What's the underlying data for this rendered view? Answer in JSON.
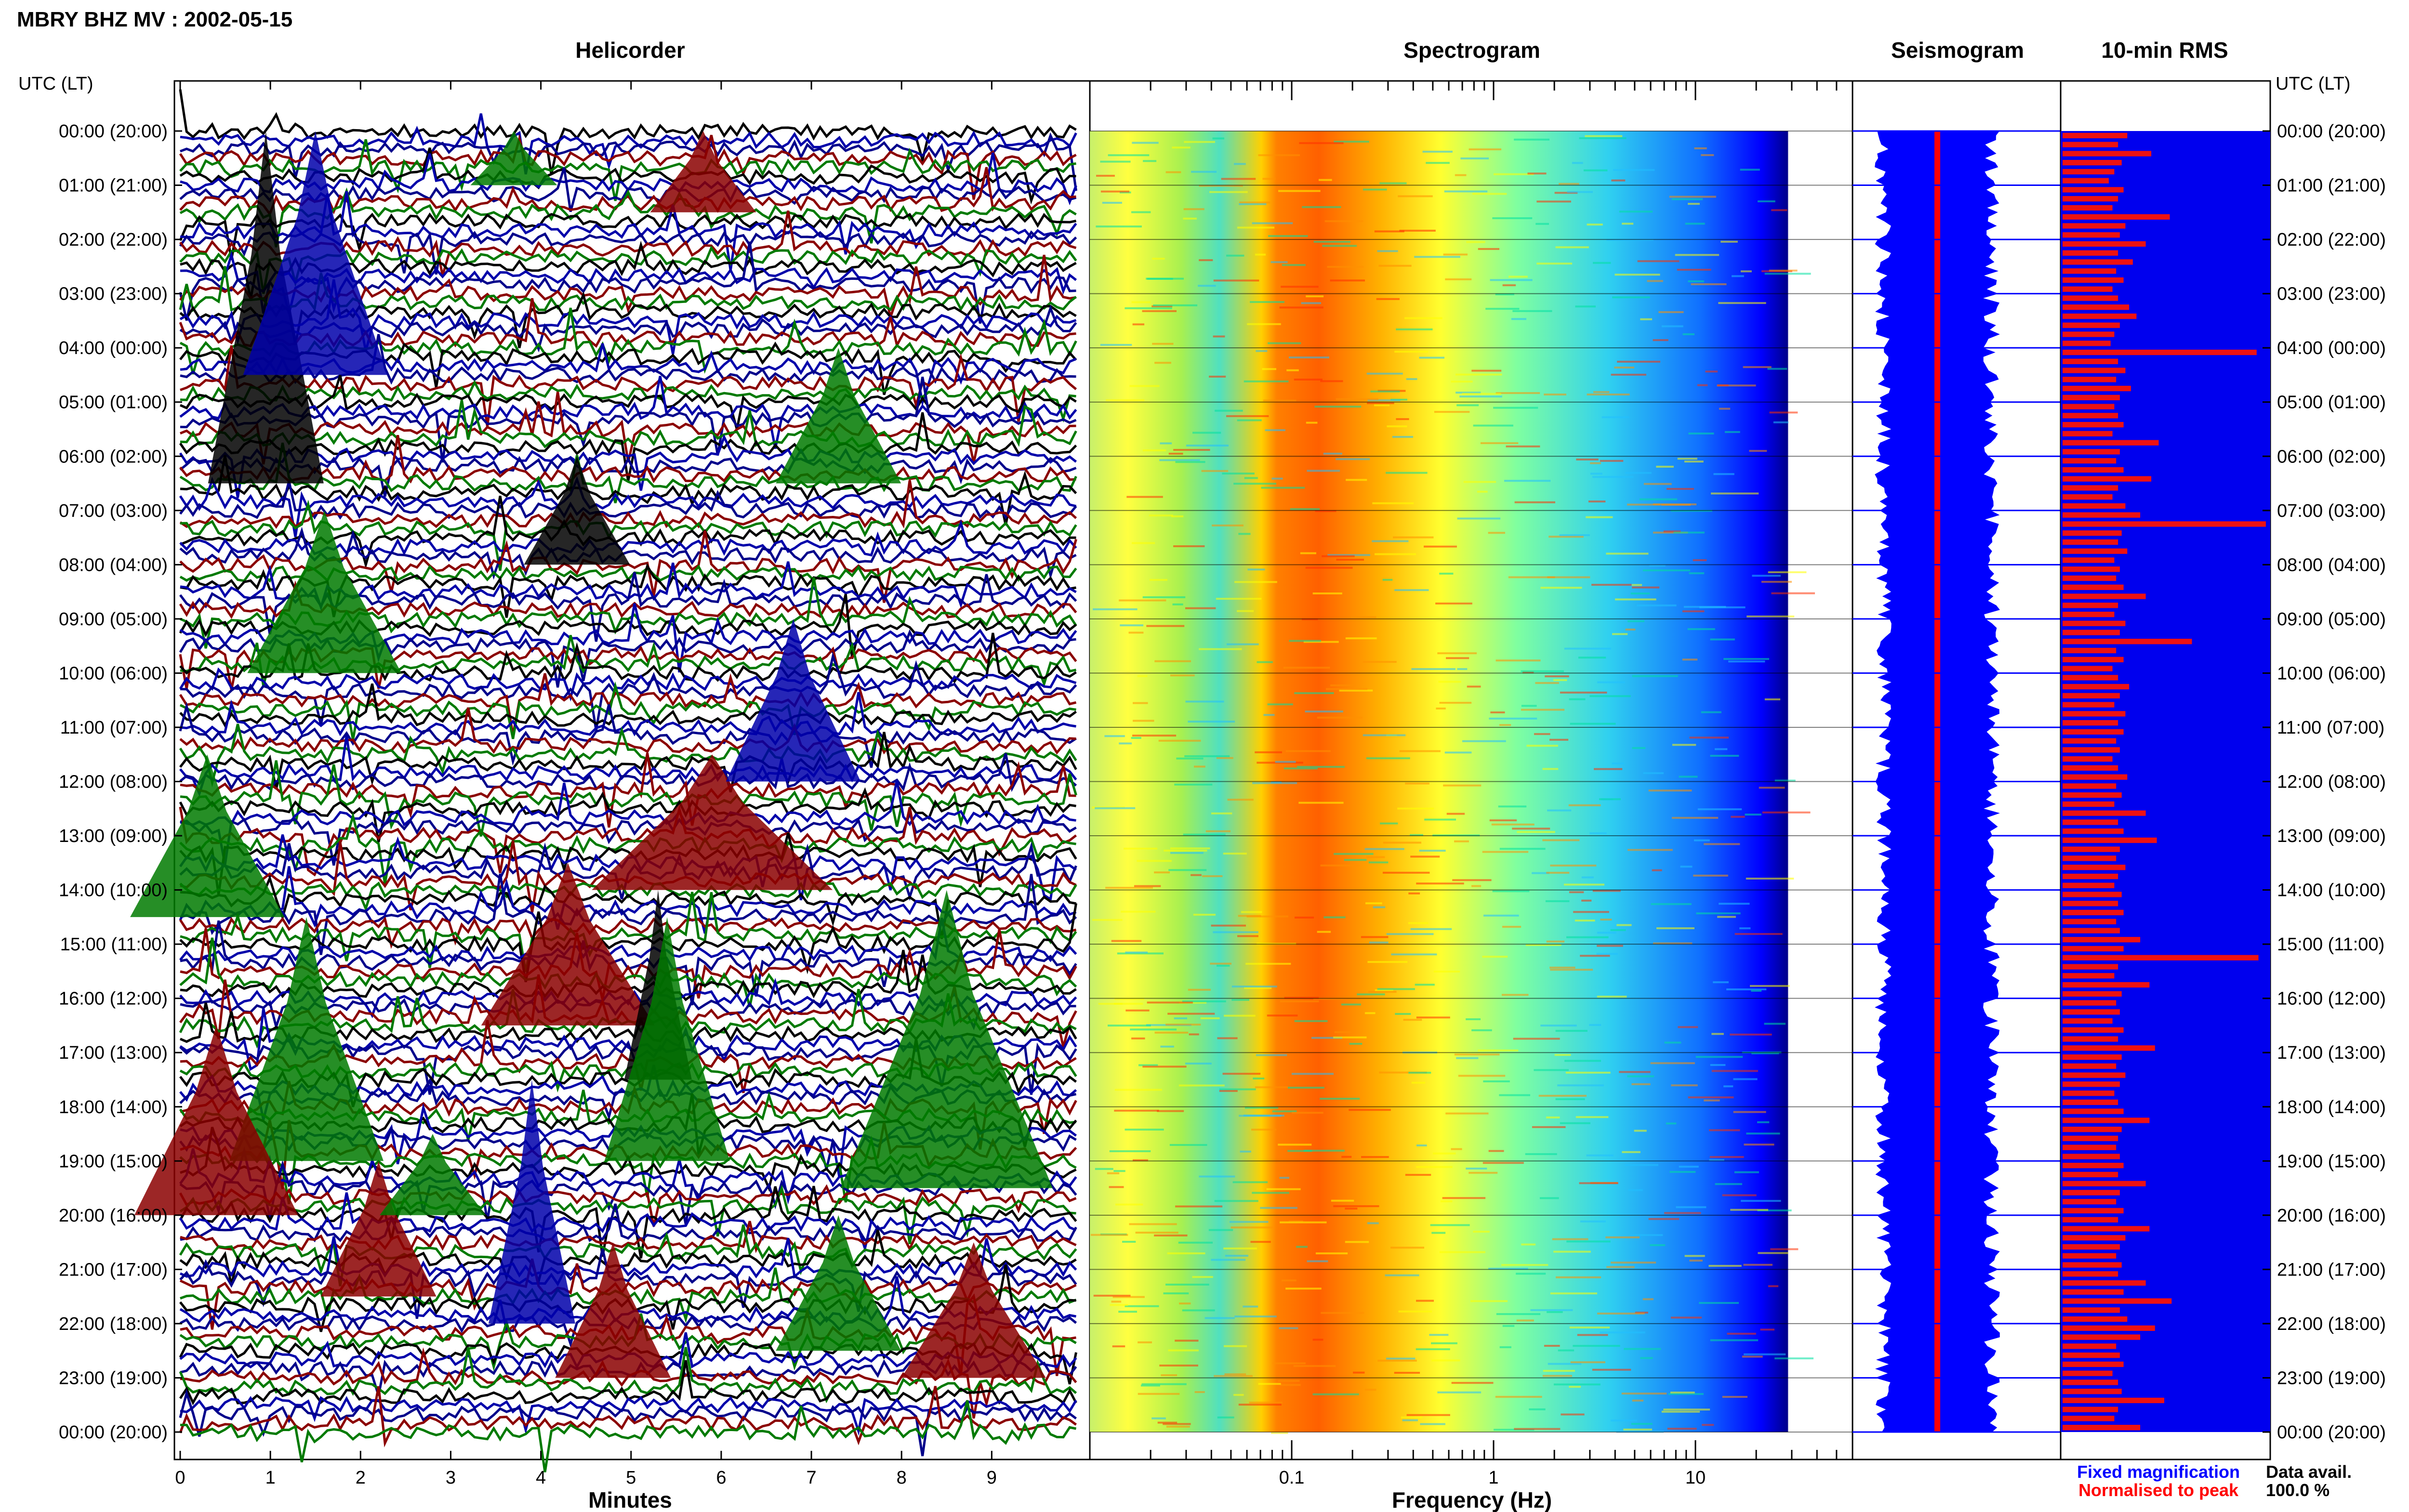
{
  "title": "MBRY BHZ MV : 2002-05-15",
  "panels": {
    "helicorder": "Helicorder",
    "spectrogram": "Spectrogram",
    "seismogram": "Seismogram",
    "rms": "10-min RMS"
  },
  "time_axis": {
    "label": "UTC (LT)",
    "ticks": [
      "00:00 (20:00)",
      "01:00 (21:00)",
      "02:00 (22:00)",
      "03:00 (23:00)",
      "04:00 (00:00)",
      "05:00 (01:00)",
      "06:00 (02:00)",
      "07:00 (03:00)",
      "08:00 (04:00)",
      "09:00 (05:00)",
      "10:00 (06:00)",
      "11:00 (07:00)",
      "12:00 (08:00)",
      "13:00 (09:00)",
      "14:00 (10:00)",
      "15:00 (11:00)",
      "16:00 (12:00)",
      "17:00 (13:00)",
      "18:00 (14:00)",
      "19:00 (15:00)",
      "20:00 (16:00)",
      "21:00 (17:00)",
      "22:00 (18:00)",
      "23:00 (19:00)",
      "00:00 (20:00)"
    ]
  },
  "legend": {
    "fixed": "Fixed magnification",
    "normalised": "Normalised to peak",
    "fixed_color": "#0000ff",
    "normalised_color": "#ff0000",
    "avail_label": "Data avail.",
    "avail_value": "100.0 %"
  },
  "colors": {
    "heli_colors": [
      "#000000",
      "#0000aa",
      "#00008b",
      "#8b0000",
      "#007a00"
    ],
    "rms_bar": "#ee1111",
    "rms_bg": "#0000ee"
  },
  "chart_data": [
    {
      "type": "line",
      "name": "helicorder",
      "xlabel": "Minutes",
      "xlim": [
        0,
        10
      ],
      "x_ticks": [
        0,
        1,
        2,
        3,
        4,
        5,
        6,
        7,
        8,
        9
      ],
      "rows": 144,
      "row_minutes": 10,
      "ylim_hours": [
        0,
        24
      ]
    },
    {
      "type": "heatmap",
      "name": "spectrogram",
      "xlabel": "Frequency (Hz)",
      "x_scale": "log",
      "xlim": [
        0.01,
        60
      ],
      "x_ticks": [
        0.1,
        1,
        10
      ],
      "x_tick_labels": [
        "0.1",
        "1",
        "10"
      ],
      "colorscale": [
        "#00008b",
        "#0000ff",
        "#00c8ff",
        "#7fffd4",
        "#ffff00",
        "#ff8c00",
        "#ff2000"
      ],
      "ylim_hours": [
        0,
        24
      ]
    },
    {
      "type": "line",
      "name": "seismogram",
      "series": [
        {
          "name": "Fixed magnification",
          "color": "#0000ff"
        },
        {
          "name": "Normalised to peak",
          "color": "#ff0000"
        }
      ],
      "ylim_hours": [
        0,
        24
      ]
    },
    {
      "type": "bar",
      "name": "rms",
      "orientation": "horizontal",
      "interval_minutes": 10,
      "ylim_hours": [
        0,
        24
      ],
      "values": [
        0.35,
        0.3,
        0.48,
        0.32,
        0.28,
        0.25,
        0.33,
        0.3,
        0.27,
        0.58,
        0.34,
        0.31,
        0.45,
        0.3,
        0.38,
        0.29,
        0.33,
        0.27,
        0.3,
        0.36,
        0.4,
        0.31,
        0.28,
        0.26,
        1.05,
        0.3,
        0.34,
        0.29,
        0.37,
        0.31,
        0.28,
        0.3,
        0.33,
        0.27,
        0.52,
        0.31,
        0.29,
        0.33,
        0.48,
        0.3,
        0.27,
        0.34,
        0.42,
        1.1,
        0.32,
        0.3,
        0.35,
        0.28,
        0.31,
        0.29,
        0.33,
        0.45,
        0.3,
        0.28,
        0.34,
        0.31,
        0.7,
        0.29,
        0.33,
        0.27,
        0.3,
        0.36,
        0.31,
        0.28,
        0.34,
        0.3,
        0.33,
        0.29,
        0.31,
        0.27,
        0.3,
        0.35,
        0.29,
        0.32,
        0.28,
        0.45,
        0.3,
        0.33,
        0.51,
        0.31,
        0.29,
        0.34,
        0.3,
        0.28,
        0.32,
        0.3,
        0.33,
        0.29,
        0.31,
        0.42,
        0.33,
        1.06,
        0.3,
        0.28,
        0.47,
        0.32,
        0.29,
        0.31,
        0.27,
        0.33,
        0.3,
        0.5,
        0.32,
        0.29,
        0.34,
        0.31,
        0.28,
        0.3,
        0.33,
        0.47,
        0.32,
        0.3,
        0.29,
        0.31,
        0.33,
        0.3,
        0.45,
        0.31,
        0.29,
        0.33,
        0.3,
        0.47,
        0.34,
        0.31,
        0.29,
        0.32,
        0.3,
        0.45,
        0.33,
        0.59,
        0.31,
        0.35,
        0.5,
        0.42,
        0.29,
        0.31,
        0.33,
        0.27,
        0.3,
        0.32,
        0.55,
        0.3,
        0.28,
        0.42
      ]
    }
  ]
}
